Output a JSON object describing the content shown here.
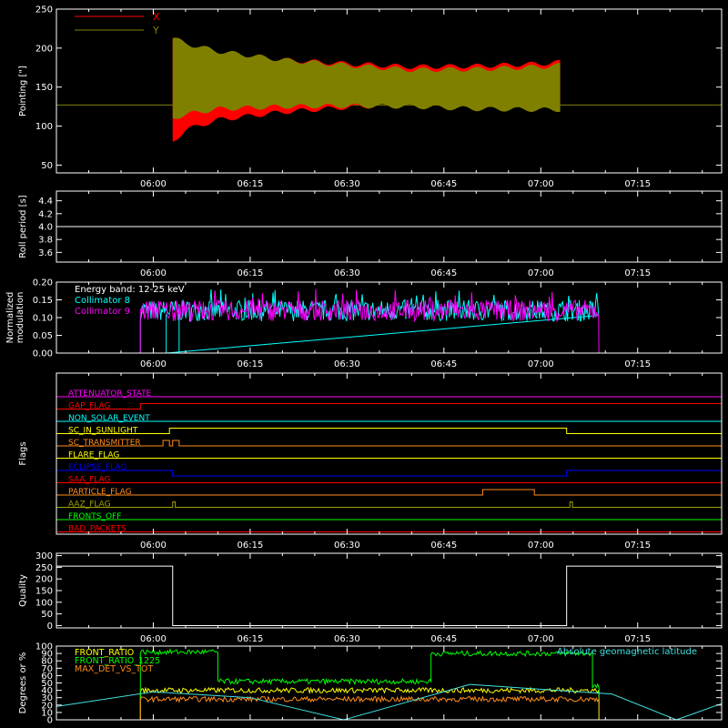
{
  "time_ticks": [
    "06:00",
    "06:15",
    "06:30",
    "06:45",
    "07:00",
    "07:15"
  ],
  "time_tick_values_min": [
    360,
    375,
    390,
    405,
    420,
    435
  ],
  "time_range_min": [
    345,
    448
  ],
  "colors": {
    "x": "#ff0000",
    "y": "#808000",
    "white": "#ffffff",
    "cyan": "#00ffff",
    "magenta": "#ff00ff",
    "red": "#ff0000",
    "orange": "#ff8c1a",
    "yellow": "#ffff00",
    "blue": "#0000ff",
    "green": "#00ff00",
    "olive": "#a0a000",
    "lightcyan": "#40e0e0"
  },
  "chart_data": [
    {
      "type": "area",
      "ylabel": "Pointing [\"]",
      "ylim": [
        40,
        250
      ],
      "yticks": [
        50,
        100,
        150,
        200,
        250
      ],
      "legend": [
        "X",
        "Y"
      ],
      "legend_position": "top-left",
      "baseline": 127,
      "series": [
        {
          "name": "X",
          "x": [
            363,
            365,
            370,
            380,
            390,
            400,
            410,
            420,
            423
          ],
          "upper": [
            212,
            205,
            195,
            185,
            180,
            176,
            177,
            180,
            182
          ],
          "lower": [
            80,
            95,
            108,
            118,
            124,
            128,
            130,
            130,
            130
          ]
        },
        {
          "name": "Y",
          "x": [
            363,
            365,
            370,
            380,
            390,
            400,
            410,
            420,
            423
          ],
          "upper": [
            213,
            206,
            196,
            185,
            178,
            172,
            173,
            176,
            178
          ],
          "lower": [
            110,
            115,
            122,
            125,
            126,
            125,
            122,
            121,
            121
          ]
        }
      ]
    },
    {
      "type": "line",
      "ylabel": "Roll period [s]",
      "ylim": [
        3.45,
        4.55
      ],
      "yticks": [
        3.6,
        3.8,
        4.0,
        4.2,
        4.4
      ],
      "ytick_labels": [
        "3.6",
        "3.8",
        "4.0",
        "4.2",
        "4.4"
      ],
      "series": [
        {
          "name": "",
          "x": [
            345,
            448
          ],
          "y": [
            4.0,
            4.0
          ]
        }
      ]
    },
    {
      "type": "line",
      "ylabel": "Normalized modulation",
      "ylim": [
        0,
        0.2
      ],
      "yticks": [
        0.0,
        0.05,
        0.1,
        0.15,
        0.2
      ],
      "ytick_labels": [
        "0.00",
        "0.05",
        "0.10",
        "0.15",
        "0.20"
      ],
      "annotation": "Energy band: 12-25 keV",
      "series": [
        {
          "name": "Collimator 8",
          "x_start": 358,
          "x_end": 429,
          "mean": 0.12,
          "spread": 0.03
        },
        {
          "name": "Collimator 9",
          "x_start": 358,
          "x_end": 429,
          "mean": 0.12,
          "spread": 0.03
        }
      ]
    },
    {
      "type": "line",
      "ylabel": "Flags",
      "flags": [
        {
          "name": "ATTENUATOR_STATE",
          "steps": []
        },
        {
          "name": "GAP_FLAG",
          "steps": [
            [
              358,
              1
            ],
            [
              429,
              1
            ]
          ]
        },
        {
          "name": "NON_SOLAR_EVENT",
          "steps": []
        },
        {
          "name": "SC_IN_SUNLIGHT",
          "steps": [
            [
              362.5,
              1
            ],
            [
              424,
              0
            ]
          ]
        },
        {
          "name": "SC_TRANSMITTER",
          "steps": [
            [
              361.5,
              1
            ],
            [
              362.5,
              0
            ],
            [
              363,
              1
            ],
            [
              364,
              0
            ]
          ]
        },
        {
          "name": "FLARE_FLAG",
          "steps": []
        },
        {
          "name": "ECLIPSE_FLAG",
          "steps": [
            [
              363,
              -1
            ],
            [
              424,
              0
            ]
          ]
        },
        {
          "name": "SAA_FLAG",
          "steps": []
        },
        {
          "name": "PARTICLE_FLAG",
          "steps": [
            [
              411,
              1
            ],
            [
              419,
              0
            ]
          ]
        },
        {
          "name": "AAZ_FLAG",
          "steps": [
            [
              363,
              1
            ],
            [
              363.4,
              0
            ],
            [
              424.5,
              1
            ],
            [
              424.9,
              0
            ]
          ]
        },
        {
          "name": "FRONTS_OFF",
          "steps": []
        },
        {
          "name": "BAD_PACKETS",
          "steps": []
        }
      ]
    },
    {
      "type": "line",
      "ylabel": "Quality",
      "ylim": [
        -10,
        310
      ],
      "yticks": [
        0,
        50,
        100,
        150,
        200,
        250,
        300
      ],
      "series": [
        {
          "name": "",
          "x": [
            345,
            363,
            363,
            424,
            424,
            448
          ],
          "y": [
            255,
            255,
            0,
            0,
            255,
            255
          ]
        }
      ]
    },
    {
      "type": "line",
      "ylabel": "Degrees or %",
      "ylim": [
        0,
        100
      ],
      "yticks": [
        0,
        10,
        20,
        30,
        40,
        50,
        60,
        70,
        80,
        90,
        100
      ],
      "series": [
        {
          "name": "FRONT_RATIO",
          "x": [
            345,
            358,
            358,
            429,
            429,
            448
          ],
          "y": [
            0,
            0,
            40,
            40,
            0,
            0
          ]
        },
        {
          "name": "FRONT_RATIO_1225",
          "x": [
            345,
            358,
            358,
            370,
            370,
            403,
            403,
            428,
            428,
            429,
            429,
            448
          ],
          "y": [
            0,
            0,
            92,
            92,
            52,
            52,
            90,
            90,
            45,
            45,
            0,
            0
          ]
        },
        {
          "name": "MAX_DET_VS_TOT",
          "x": [
            345,
            358,
            358,
            429,
            429,
            448
          ],
          "y": [
            0,
            0,
            28,
            28,
            0,
            0
          ]
        },
        {
          "name": "Absolute geomagnetic latitude",
          "x": [
            345,
            360,
            375,
            389.5,
            409,
            431,
            441,
            448
          ],
          "y": [
            18,
            38,
            30,
            0,
            48,
            35,
            0,
            22
          ]
        }
      ]
    }
  ]
}
